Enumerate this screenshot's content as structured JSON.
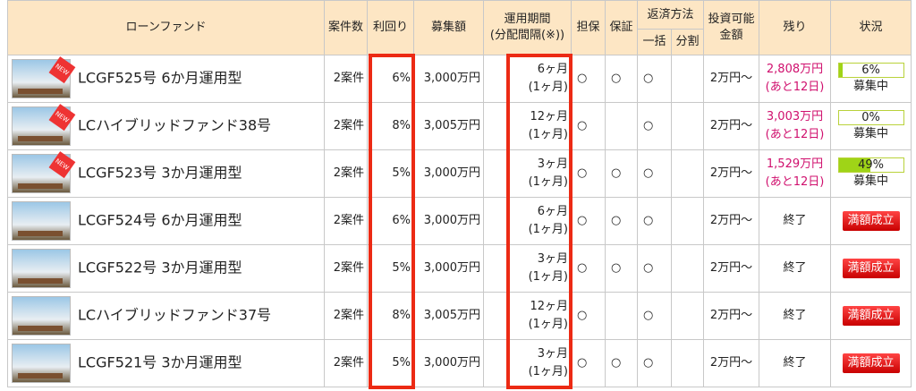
{
  "header": {
    "fund": "ローンファンド",
    "count": "案件数",
    "yield": "利回り",
    "amount": "募集額",
    "period": "運用期間",
    "interval": "(分配間隔(※))",
    "collateral": "担保",
    "guarantee": "保証",
    "repayment": "返済方法",
    "lump": "一括",
    "installment": "分割",
    "invest_1": "投資可能",
    "invest_2": "金額",
    "remaining": "残り",
    "status": "状況"
  },
  "rows": [
    {
      "badge": "NEW",
      "name": "LCGF525号 6か月運用型",
      "count": "2案件",
      "yield": "6%",
      "amount": "3,000万円",
      "period": "6ヶ月",
      "interval": "(1ヶ月)",
      "collateral": "○",
      "guarantee": "○",
      "lump": "○",
      "invest": "2万円〜",
      "remaining": "2,808万円",
      "days": "(あと12日)",
      "progress": {
        "value": 6,
        "label": "6%"
      },
      "status": "募集中"
    },
    {
      "badge": "NEW",
      "name": "LCハイブリッドファンド38号",
      "count": "2案件",
      "yield": "8%",
      "amount": "3,005万円",
      "period": "12ヶ月",
      "interval": "(1ヶ月)",
      "collateral": "○",
      "lump": "○",
      "invest": "2万円〜",
      "remaining": "3,003万円",
      "days": "(あと12日)",
      "progress": {
        "value": 0,
        "label": "0%"
      },
      "status": "募集中"
    },
    {
      "badge": "NEW",
      "name": "LCGF523号 3か月運用型",
      "count": "2案件",
      "yield": "5%",
      "amount": "3,000万円",
      "period": "3ヶ月",
      "interval": "(1ヶ月)",
      "collateral": "○",
      "guarantee": "○",
      "lump": "○",
      "invest": "2万円〜",
      "remaining": "1,529万円",
      "days": "(あと12日)",
      "progress": {
        "value": 49,
        "label": "49%"
      },
      "status": "募集中"
    },
    {
      "name": "LCGF524号 6か月運用型",
      "count": "2案件",
      "yield": "6%",
      "amount": "3,000万円",
      "period": "6ヶ月",
      "interval": "(1ヶ月)",
      "collateral": "○",
      "guarantee": "○",
      "lump": "○",
      "invest": "2万円〜",
      "remaining": "終了",
      "button": "満額成立"
    },
    {
      "name": "LCGF522号 3か月運用型",
      "count": "2案件",
      "yield": "5%",
      "amount": "3,000万円",
      "period": "3ヶ月",
      "interval": "(1ヶ月)",
      "collateral": "○",
      "guarantee": "○",
      "lump": "○",
      "invest": "2万円〜",
      "remaining": "終了",
      "button": "満額成立"
    },
    {
      "name": "LCハイブリッドファンド37号",
      "count": "2案件",
      "yield": "8%",
      "amount": "3,005万円",
      "period": "12ヶ月",
      "interval": "(1ヶ月)",
      "collateral": "○",
      "lump": "○",
      "invest": "2万円〜",
      "remaining": "終了",
      "button": "満額成立"
    },
    {
      "name": "LCGF521号 3か月運用型",
      "count": "2案件",
      "yield": "5%",
      "amount": "3,000万円",
      "period": "3ヶ月",
      "interval": "(1ヶ月)",
      "collateral": "○",
      "guarantee": "○",
      "lump": "○",
      "invest": "2万円〜",
      "remaining": "終了",
      "button": "満額成立"
    }
  ]
}
